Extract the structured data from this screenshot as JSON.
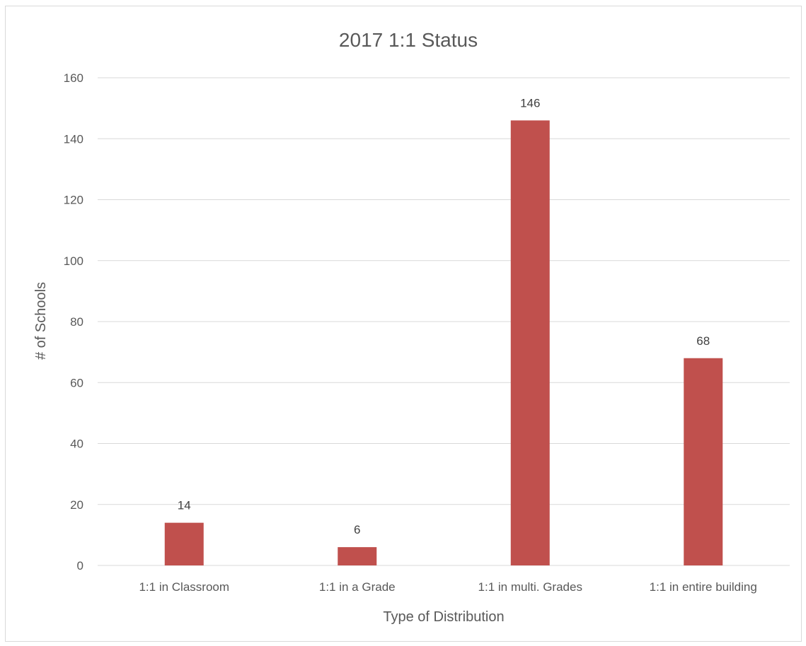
{
  "chart_data": {
    "type": "bar",
    "title": "2017 1:1 Status",
    "xlabel": "Type of Distribution",
    "ylabel": "# of Schools",
    "categories": [
      "1:1 in Classroom",
      "1:1 in a Grade",
      "1:1 in multi. Grades",
      "1:1 in entire building"
    ],
    "values": [
      14,
      6,
      146,
      68
    ],
    "ylim": [
      0,
      160
    ],
    "yticks": [
      0,
      20,
      40,
      60,
      80,
      100,
      120,
      140,
      160
    ],
    "grid": true,
    "data_labels": true,
    "bar_color": "#c0504d"
  }
}
